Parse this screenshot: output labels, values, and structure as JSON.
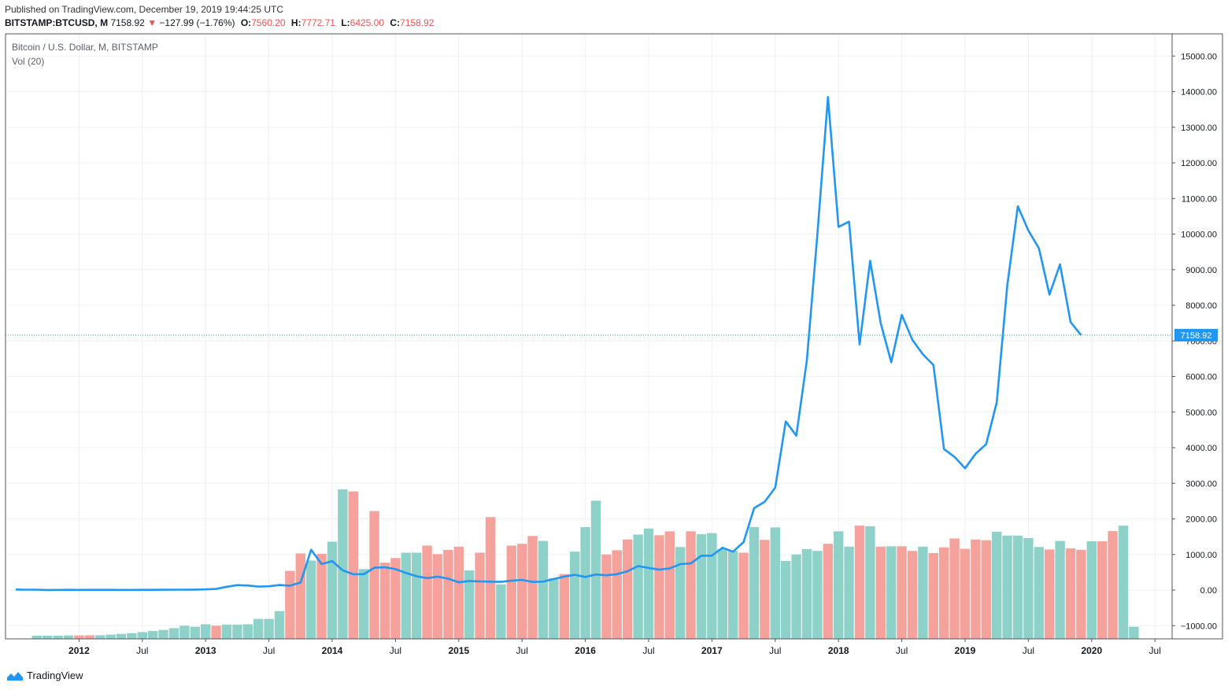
{
  "header": {
    "published": "Published on TradingView.com, December 19, 2019 19:44:25 UTC",
    "symbol": "BITSTAMP:BTCUSD, M",
    "last": "7158.92",
    "change_arrow": "▼",
    "change": "−127.99 (−1.76%)",
    "open_label": "O:",
    "open": "7560.20",
    "high_label": "H:",
    "high": "7772.71",
    "low_label": "L:",
    "low": "6425.00",
    "close_label": "C:",
    "close": "7158.92"
  },
  "legend": {
    "title": "Bitcoin / U.S. Dollar, M, BITSTAMP",
    "volume": "Vol (20)"
  },
  "footer": {
    "brand": "TradingView"
  },
  "colors": {
    "line": "#2196f3",
    "vol_up": "#8dd1c8",
    "vol_down": "#f5a19c",
    "grid": "#eef0f3",
    "price_tag": "#2196f3",
    "last_line": "#26a69a",
    "negative": "#ef5350"
  },
  "chart_data": {
    "type": "line",
    "title": "Bitcoin / U.S. Dollar, M, BITSTAMP",
    "xlabel": "",
    "ylabel": "",
    "ylim": [
      -1300,
      15500
    ],
    "grid": true,
    "legend": "top-left",
    "last_price_label": "7158.92",
    "y_ticks": [
      15000,
      14000,
      13000,
      12000,
      11000,
      10000,
      9000,
      8000,
      7000,
      6000,
      5000,
      4000,
      3000,
      2000,
      1000,
      0,
      -1000
    ],
    "y_tick_labels": [
      "15000.00",
      "14000.00",
      "13000.00",
      "12000.00",
      "11000.00",
      "10000.00",
      "9000.00",
      "8000.00",
      "7000.00",
      "6000.00",
      "5000.00",
      "4000.00",
      "3000.00",
      "2000.00",
      "1000.00",
      "0.00",
      "−1000.00"
    ],
    "x_ticks": [
      {
        "i": 6,
        "label": "2012"
      },
      {
        "i": 12,
        "label": "Jul"
      },
      {
        "i": 18,
        "label": "2013"
      },
      {
        "i": 24,
        "label": "Jul"
      },
      {
        "i": 30,
        "label": "2014"
      },
      {
        "i": 36,
        "label": "Jul"
      },
      {
        "i": 42,
        "label": "2015"
      },
      {
        "i": 48,
        "label": "Jul"
      },
      {
        "i": 54,
        "label": "2016"
      },
      {
        "i": 60,
        "label": "Jul"
      },
      {
        "i": 66,
        "label": "2017"
      },
      {
        "i": 72,
        "label": "Jul"
      },
      {
        "i": 78,
        "label": "2018"
      },
      {
        "i": 84,
        "label": "Jul"
      },
      {
        "i": 90,
        "label": "2019"
      },
      {
        "i": 96,
        "label": "Jul"
      },
      {
        "i": 102,
        "label": "2020"
      },
      {
        "i": 108,
        "label": "Jul"
      }
    ],
    "series": [
      {
        "name": "BTCUSD close",
        "start_index": 0,
        "values": [
          15,
          12,
          10,
          3,
          5,
          7,
          5,
          6,
          6,
          6,
          5,
          5,
          6,
          7,
          8,
          10,
          12,
          13,
          20,
          33,
          93,
          139,
          129,
          97,
          106,
          141,
          123,
          211,
          1132,
          732,
          813,
          554,
          445,
          449,
          627,
          640,
          589,
          479,
          389,
          337,
          378,
          320,
          218,
          254,
          244,
          236,
          230,
          264,
          284,
          230,
          237,
          312,
          377,
          429,
          369,
          437,
          416,
          447,
          528,
          673,
          624,
          575,
          610,
          729,
          750,
          965,
          968,
          1190,
          1079,
          1348,
          2300,
          2480,
          2875,
          4735,
          4338,
          6450,
          10000,
          13850,
          10200,
          10350,
          6900,
          9250,
          7500,
          6400,
          7730,
          7030,
          6620,
          6320,
          3960,
          3740,
          3420,
          3830,
          4100,
          5270,
          8560,
          10780,
          10100,
          9600,
          8300,
          9150,
          7530,
          7158.92
        ]
      },
      {
        "name": "Volume",
        "start_index": 2,
        "values": [
          -1280,
          -1280,
          -1280,
          -1275,
          -1272,
          -1270,
          -1268,
          -1250,
          -1230,
          -1210,
          -1180,
          -1150,
          -1120,
          -1070,
          -1000,
          -1030,
          -960,
          -1000,
          -970,
          -970,
          -960,
          -810,
          -810,
          -590,
          540,
          1030,
          830,
          1020,
          1360,
          2830,
          2770,
          590,
          2220,
          770,
          900,
          1050,
          1050,
          1250,
          1010,
          1130,
          1220,
          550,
          1050,
          2050,
          160,
          1250,
          1300,
          1520,
          1380,
          330,
          450,
          1080,
          1770,
          2510,
          1000,
          1120,
          1420,
          1560,
          1730,
          1540,
          1650,
          1210,
          1650,
          1570,
          1600,
          1150,
          1100,
          1050,
          1770,
          1410,
          1760,
          820,
          1000,
          1150,
          1100,
          1300,
          1650,
          1220,
          1810,
          1790,
          1220,
          1230,
          1230,
          1100,
          1220,
          1040,
          1200,
          1450,
          1160,
          1420,
          1400,
          1640,
          1530,
          1530,
          1460,
          1210,
          1140,
          1380,
          1170,
          1130,
          1370,
          1370,
          1660,
          1810,
          -1030
        ],
        "directions": [
          "up",
          "up",
          "up",
          "up",
          "down",
          "down",
          "up",
          "up",
          "up",
          "up",
          "up",
          "up",
          "up",
          "up",
          "up",
          "up",
          "up",
          "down",
          "up",
          "up",
          "up",
          "up",
          "up",
          "up",
          "down",
          "down",
          "up",
          "down",
          "up",
          "up",
          "down",
          "up",
          "down",
          "down",
          "down",
          "up",
          "up",
          "down",
          "down",
          "down",
          "down",
          "up",
          "down",
          "down",
          "up",
          "down",
          "down",
          "down",
          "up",
          "up",
          "down",
          "up",
          "up",
          "up",
          "down",
          "down",
          "down",
          "up",
          "up",
          "down",
          "down",
          "up",
          "down",
          "up",
          "up",
          "up",
          "up",
          "down",
          "up",
          "down",
          "up",
          "up",
          "up",
          "up",
          "up",
          "down",
          "up",
          "up",
          "down",
          "up",
          "down",
          "up",
          "down",
          "down",
          "up",
          "down",
          "down",
          "down",
          "down",
          "down",
          "down",
          "up",
          "up",
          "up",
          "up",
          "up",
          "down",
          "up",
          "down",
          "down",
          "up",
          "down",
          "down"
        ]
      }
    ]
  }
}
